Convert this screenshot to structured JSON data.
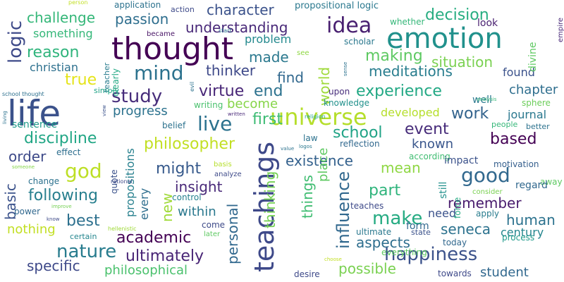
{
  "words": [
    {
      "text": "emotion",
      "color": "#21918c"
    },
    {
      "text": "thought",
      "color": "#440154"
    },
    {
      "text": "life",
      "color": "#3b528b"
    },
    {
      "text": "teachings",
      "color": "#3e4989"
    },
    {
      "text": "universe",
      "color": "#b5de2b"
    },
    {
      "text": "idea",
      "color": "#481f70"
    },
    {
      "text": "mind",
      "color": "#2c728e"
    },
    {
      "text": "study",
      "color": "#472d7b"
    },
    {
      "text": "happiness",
      "color": "#3b528b"
    },
    {
      "text": "good",
      "color": "#31688e"
    },
    {
      "text": "nature",
      "color": "#287c8e"
    },
    {
      "text": "live",
      "color": "#2c728e"
    },
    {
      "text": "logic",
      "color": "#3e4a89"
    },
    {
      "text": "god",
      "color": "#bddf26"
    },
    {
      "text": "character",
      "color": "#3b528b"
    },
    {
      "text": "decision",
      "color": "#27ad81"
    },
    {
      "text": "make",
      "color": "#25ab82"
    },
    {
      "text": "philosopher",
      "color": "#c2df23"
    },
    {
      "text": "virtue",
      "color": "#482677"
    },
    {
      "text": "end",
      "color": "#2c728e"
    },
    {
      "text": "experience",
      "color": "#22a884"
    },
    {
      "text": "challenge",
      "color": "#35b779"
    },
    {
      "text": "reason",
      "color": "#2fb47c"
    },
    {
      "text": "passion",
      "color": "#2e6e8e"
    },
    {
      "text": "understanding",
      "color": "#482878"
    },
    {
      "text": "making",
      "color": "#5ec962"
    },
    {
      "text": "situation",
      "color": "#7ad151"
    },
    {
      "text": "meditations",
      "color": "#287d8e"
    },
    {
      "text": "thinker",
      "color": "#3e4989"
    },
    {
      "text": "made",
      "color": "#2a788e"
    },
    {
      "text": "problem",
      "color": "#23898e"
    },
    {
      "text": "world",
      "color": "#9fda3a"
    },
    {
      "text": "find",
      "color": "#31688e"
    },
    {
      "text": "true",
      "color": "#e5e419"
    },
    {
      "text": "christian",
      "color": "#2d708e"
    },
    {
      "text": "something",
      "color": "#35b779"
    },
    {
      "text": "discipline",
      "color": "#21a685"
    },
    {
      "text": "progress",
      "color": "#2c728e"
    },
    {
      "text": "become",
      "color": "#86d549"
    },
    {
      "text": "first",
      "color": "#3dbc74"
    },
    {
      "text": "school",
      "color": "#20a386"
    },
    {
      "text": "work",
      "color": "#33638d"
    },
    {
      "text": "event",
      "color": "#472c7a"
    },
    {
      "text": "based",
      "color": "#440154"
    },
    {
      "text": "chapter",
      "color": "#2e6e8e"
    },
    {
      "text": "journal",
      "color": "#2a788e"
    },
    {
      "text": "found",
      "color": "#3b528b"
    },
    {
      "text": "known",
      "color": "#39568c"
    },
    {
      "text": "developed",
      "color": "#b5de2b"
    },
    {
      "text": "might",
      "color": "#375a8c"
    },
    {
      "text": "existence",
      "color": "#34618d"
    },
    {
      "text": "order",
      "color": "#3e4a89"
    },
    {
      "text": "following",
      "color": "#277f8e"
    },
    {
      "text": "insight",
      "color": "#482878"
    },
    {
      "text": "best",
      "color": "#2d708e"
    },
    {
      "text": "new",
      "color": "#a0da39"
    },
    {
      "text": "thinking",
      "color": "#75d054"
    },
    {
      "text": "things",
      "color": "#40bd72"
    },
    {
      "text": "place",
      "color": "#5ec962"
    },
    {
      "text": "influence",
      "color": "#31688e"
    },
    {
      "text": "mean",
      "color": "#8fd744"
    },
    {
      "text": "part",
      "color": "#2fb47c"
    },
    {
      "text": "remember",
      "color": "#481b6d"
    },
    {
      "text": "human",
      "color": "#2c728e"
    },
    {
      "text": "seneca",
      "color": "#2c728e"
    },
    {
      "text": "century",
      "color": "#24868e"
    },
    {
      "text": "academic",
      "color": "#440154"
    },
    {
      "text": "ultimately",
      "color": "#482475"
    },
    {
      "text": "personal",
      "color": "#31688e"
    },
    {
      "text": "aspects",
      "color": "#2e6e8e"
    },
    {
      "text": "possible",
      "color": "#7ad151"
    },
    {
      "text": "specific",
      "color": "#3e4989"
    },
    {
      "text": "philosophical",
      "color": "#4ac16d"
    },
    {
      "text": "student",
      "color": "#31688e"
    },
    {
      "text": "basic",
      "color": "#3b528b"
    },
    {
      "text": "nothing",
      "color": "#c2df23"
    },
    {
      "text": "propositions",
      "color": "#27808e"
    },
    {
      "text": "every",
      "color": "#2e6e8e"
    },
    {
      "text": "within",
      "color": "#2a788e"
    },
    {
      "text": "sentence",
      "color": "#1f9a8a"
    },
    {
      "text": "propositional logic",
      "color": "#2a788e"
    },
    {
      "text": "application",
      "color": "#2c728e"
    },
    {
      "text": "action",
      "color": "#3e4a89"
    },
    {
      "text": "whether",
      "color": "#35b779"
    },
    {
      "text": "look",
      "color": "#481f70"
    },
    {
      "text": "scholar",
      "color": "#2a788e"
    },
    {
      "text": "divine",
      "color": "#5ec962"
    },
    {
      "text": "empire",
      "color": "#482878"
    },
    {
      "text": "became",
      "color": "#471365"
    },
    {
      "text": "teacher",
      "color": "#287c8e"
    },
    {
      "text": "clearly",
      "color": "#22a884"
    },
    {
      "text": "simply",
      "color": "#20a386"
    },
    {
      "text": "school thought",
      "color": "#2d708e"
    },
    {
      "text": "writing",
      "color": "#4ac16d"
    },
    {
      "text": "knowledge",
      "color": "#21918c"
    },
    {
      "text": "upon",
      "color": "#472d7b"
    },
    {
      "text": "well",
      "color": "#2a788e"
    },
    {
      "text": "sphere",
      "color": "#6ccd5a"
    },
    {
      "text": "better",
      "color": "#2c728e"
    },
    {
      "text": "people",
      "color": "#35b779"
    },
    {
      "text": "belief",
      "color": "#2c728e"
    },
    {
      "text": "law",
      "color": "#2c728e"
    },
    {
      "text": "reflection",
      "color": "#31688e"
    },
    {
      "text": "according",
      "color": "#40bd72"
    },
    {
      "text": "impact",
      "color": "#3b528b"
    },
    {
      "text": "motivation",
      "color": "#355f8d"
    },
    {
      "text": "away",
      "color": "#5ec962"
    },
    {
      "text": "effect",
      "color": "#2e6e8e"
    },
    {
      "text": "quote",
      "color": "#3b528b"
    },
    {
      "text": "basis",
      "color": "#b5de2b"
    },
    {
      "text": "analyze",
      "color": "#3e4a89"
    },
    {
      "text": "change",
      "color": "#2c728e"
    },
    {
      "text": "rational",
      "color": "#3e4a89"
    },
    {
      "text": "control",
      "color": "#26828e"
    },
    {
      "text": "power",
      "color": "#31688e"
    },
    {
      "text": "come",
      "color": "#3e4a89"
    },
    {
      "text": "later",
      "color": "#5ec962"
    },
    {
      "text": "certain",
      "color": "#24868e"
    },
    {
      "text": "hellenistic",
      "color": "#a0da39"
    },
    {
      "text": "teaches",
      "color": "#3e4a89"
    },
    {
      "text": "form",
      "color": "#31688e"
    },
    {
      "text": "need",
      "color": "#3b528b"
    },
    {
      "text": "apply",
      "color": "#287c8e"
    },
    {
      "text": "consider",
      "color": "#7ad151"
    },
    {
      "text": "still",
      "color": "#21918c"
    },
    {
      "text": "force",
      "color": "#25ab82"
    },
    {
      "text": "regard",
      "color": "#31688e"
    },
    {
      "text": "process",
      "color": "#1f9a8a"
    },
    {
      "text": "today",
      "color": "#31688e"
    },
    {
      "text": "ultimate",
      "color": "#2a788e"
    },
    {
      "text": "state",
      "color": "#3b528b"
    },
    {
      "text": "everything",
      "color": "#5ec962"
    },
    {
      "text": "towards",
      "color": "#3e4989"
    },
    {
      "text": "desire",
      "color": "#3e4989"
    },
    {
      "text": "person",
      "color": "#c2df23"
    },
    {
      "text": "start",
      "color": "#2c728e"
    },
    {
      "text": "see",
      "color": "#8fd744"
    },
    {
      "text": "evil",
      "color": "#2c728e"
    },
    {
      "text": "religion",
      "color": "#21a685"
    },
    {
      "text": "sense",
      "color": "#2c728e"
    },
    {
      "text": "written",
      "color": "#482878"
    },
    {
      "text": "logos",
      "color": "#2a788e"
    },
    {
      "text": "value",
      "color": "#2c728e"
    },
    {
      "text": "analysis",
      "color": "#35b779"
    },
    {
      "text": "someone",
      "color": "#86d549"
    },
    {
      "text": "know",
      "color": "#3e4a89"
    },
    {
      "text": "improve",
      "color": "#75d054"
    },
    {
      "text": "view",
      "color": "#3b528b"
    },
    {
      "text": "living",
      "color": "#2c728e"
    },
    {
      "text": "choose",
      "color": "#c2df23"
    }
  ]
}
